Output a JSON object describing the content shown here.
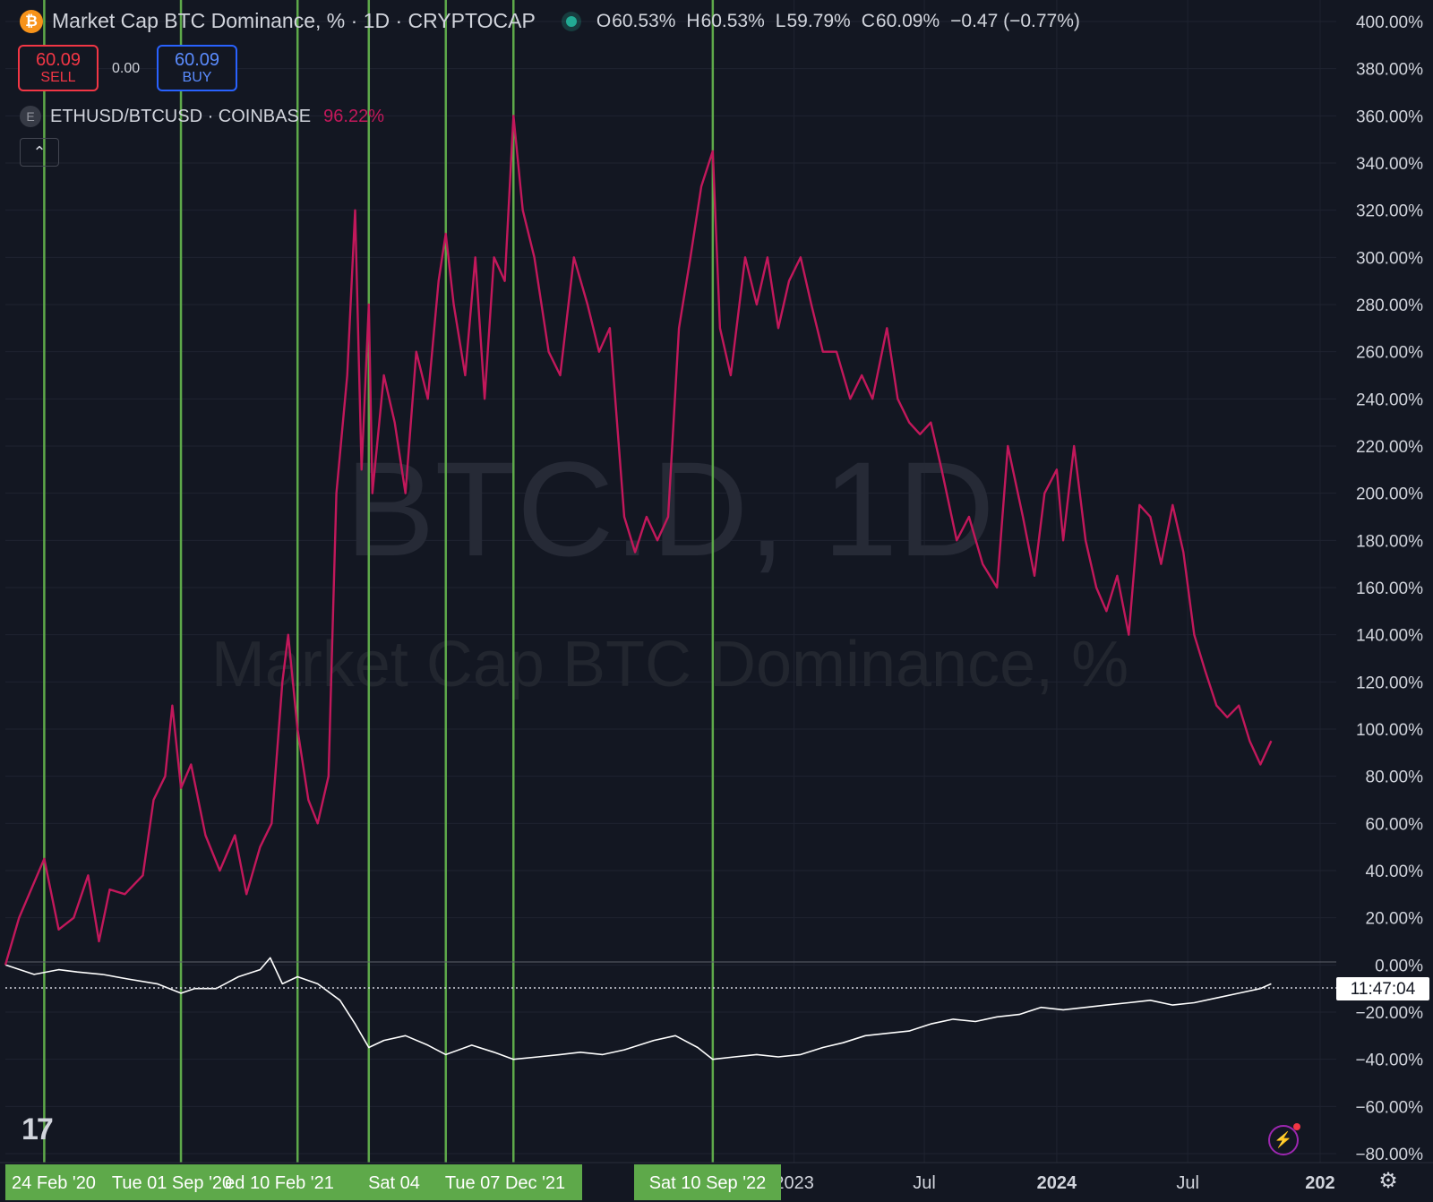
{
  "header": {
    "symbol_title": "Market Cap BTC Dominance, % · 1D · CRYPTOCAP",
    "btc_icon_glyph": "₿",
    "ohlc": [
      {
        "key": "O",
        "value": "60.53%"
      },
      {
        "key": "H",
        "value": "60.53%"
      },
      {
        "key": "L",
        "value": "59.79%"
      },
      {
        "key": "C",
        "value": "60.09%"
      }
    ],
    "change": "−0.47 (−0.77%)"
  },
  "trade": {
    "sell_price": "60.09",
    "sell_label": "SELL",
    "spread": "0.00",
    "buy_price": "60.09",
    "buy_label": "BUY"
  },
  "compare": {
    "icon_glyph": "E",
    "label": "ETHUSD/BTCUSD · COINBASE",
    "value": "96.22%"
  },
  "collapse_glyph": "⌃",
  "watermark": {
    "line1": "BTC.D, 1D",
    "line2": "Market Cap BTC Dominance, %"
  },
  "countdown": "11:47:04",
  "logo_text": "17",
  "colors": {
    "background": "#131722",
    "eth_series": "#c2185b",
    "btc_series": "#ffffff",
    "marker": "#5ea94a",
    "grid": "#1f2330"
  },
  "chart_data": {
    "type": "line",
    "xlim": [
      "2020-01-01",
      "2025-01-01"
    ],
    "ylim": [
      -80,
      400
    ],
    "y_ticks": [
      "400.00%",
      "380.00%",
      "360.00%",
      "340.00%",
      "320.00%",
      "300.00%",
      "280.00%",
      "260.00%",
      "240.00%",
      "220.00%",
      "200.00%",
      "180.00%",
      "160.00%",
      "140.00%",
      "120.00%",
      "100.00%",
      "80.00%",
      "60.00%",
      "40.00%",
      "20.00%",
      "0.00%",
      "−20.00%",
      "−40.00%",
      "−60.00%",
      "−80.00%"
    ],
    "x_ticks": [
      {
        "date": "2023-01-01",
        "label": "2023",
        "bold": false
      },
      {
        "date": "2023-07-01",
        "label": "Jul",
        "bold": false
      },
      {
        "date": "2024-01-01",
        "label": "2024",
        "bold": true
      },
      {
        "date": "2024-07-01",
        "label": "Jul",
        "bold": false
      },
      {
        "date": "2025-01-01",
        "label": "202",
        "bold": true
      }
    ],
    "marker_lines": [
      "2020-02-24",
      "2020-09-01",
      "2021-02-10",
      "2021-05-20",
      "2021-09-04",
      "2021-12-07",
      "2022-09-10"
    ],
    "marker_labels": [
      {
        "date": "2020-02-24",
        "text": "24 Feb '20"
      },
      {
        "date": "2020-09-01",
        "text": "Tue 01 Sep '20"
      },
      {
        "date": "2021-02-10",
        "text": "ed 10 Feb '21"
      },
      {
        "date": "2021-09-04",
        "text": "Sat 04"
      },
      {
        "date": "2021-12-07",
        "text": "Tue 07 Dec '21"
      },
      {
        "date": "2022-09-10",
        "text": "Sat 10 Sep '22"
      }
    ],
    "series": [
      {
        "name": "ETHUSD/BTCUSD",
        "x": [
          "2020-01-01",
          "2020-01-20",
          "2020-02-24",
          "2020-03-15",
          "2020-04-05",
          "2020-04-25",
          "2020-05-10",
          "2020-05-25",
          "2020-06-15",
          "2020-07-10",
          "2020-07-25",
          "2020-08-10",
          "2020-08-20",
          "2020-09-01",
          "2020-09-15",
          "2020-10-05",
          "2020-10-25",
          "2020-11-15",
          "2020-12-01",
          "2020-12-20",
          "2021-01-05",
          "2021-01-20",
          "2021-01-28",
          "2021-02-10",
          "2021-02-25",
          "2021-03-10",
          "2021-03-25",
          "2021-04-05",
          "2021-04-20",
          "2021-05-01",
          "2021-05-10",
          "2021-05-20",
          "2021-05-25",
          "2021-06-10",
          "2021-06-25",
          "2021-07-10",
          "2021-07-25",
          "2021-08-10",
          "2021-08-25",
          "2021-09-04",
          "2021-09-15",
          "2021-10-01",
          "2021-10-15",
          "2021-10-28",
          "2021-11-10",
          "2021-11-25",
          "2021-12-07",
          "2021-12-20",
          "2022-01-05",
          "2022-01-25",
          "2022-02-10",
          "2022-03-01",
          "2022-03-20",
          "2022-04-05",
          "2022-04-20",
          "2022-05-10",
          "2022-05-25",
          "2022-06-10",
          "2022-06-25",
          "2022-07-10",
          "2022-07-25",
          "2022-08-10",
          "2022-08-25",
          "2022-09-10",
          "2022-09-20",
          "2022-10-05",
          "2022-10-25",
          "2022-11-10",
          "2022-11-25",
          "2022-12-10",
          "2022-12-25",
          "2023-01-10",
          "2023-01-25",
          "2023-02-10",
          "2023-03-01",
          "2023-03-20",
          "2023-04-05",
          "2023-04-20",
          "2023-05-10",
          "2023-05-25",
          "2023-06-10",
          "2023-06-25",
          "2023-07-10",
          "2023-07-25",
          "2023-08-15",
          "2023-09-01",
          "2023-09-20",
          "2023-10-10",
          "2023-10-25",
          "2023-11-15",
          "2023-12-01",
          "2023-12-15",
          "2024-01-01",
          "2024-01-10",
          "2024-01-25",
          "2024-02-10",
          "2024-02-25",
          "2024-03-10",
          "2024-03-25",
          "2024-04-10",
          "2024-04-25",
          "2024-05-10",
          "2024-05-25",
          "2024-06-10",
          "2024-06-25",
          "2024-07-10",
          "2024-07-25",
          "2024-08-10",
          "2024-08-25",
          "2024-09-10",
          "2024-09-25",
          "2024-10-10",
          "2024-10-25"
        ],
        "y": [
          0,
          20,
          45,
          15,
          20,
          38,
          10,
          32,
          30,
          38,
          70,
          80,
          110,
          75,
          85,
          55,
          40,
          55,
          30,
          50,
          60,
          120,
          140,
          100,
          70,
          60,
          80,
          200,
          250,
          320,
          210,
          280,
          200,
          250,
          230,
          200,
          260,
          240,
          290,
          310,
          280,
          250,
          300,
          240,
          300,
          290,
          360,
          320,
          300,
          260,
          250,
          300,
          280,
          260,
          270,
          190,
          175,
          190,
          180,
          190,
          270,
          300,
          330,
          345,
          270,
          250,
          300,
          280,
          300,
          270,
          290,
          300,
          280,
          260,
          260,
          240,
          250,
          240,
          270,
          240,
          230,
          225,
          230,
          210,
          180,
          190,
          170,
          160,
          220,
          190,
          165,
          200,
          210,
          180,
          220,
          180,
          160,
          150,
          165,
          140,
          195,
          190,
          170,
          195,
          175,
          140,
          125,
          110,
          105,
          110,
          95,
          85,
          95
        ],
        "stroke": "#c2185b"
      },
      {
        "name": "BTC.D",
        "x": [
          "2020-01-01",
          "2020-02-10",
          "2020-03-15",
          "2020-04-10",
          "2020-05-15",
          "2020-06-20",
          "2020-07-30",
          "2020-09-01",
          "2020-09-20",
          "2020-10-20",
          "2020-11-20",
          "2020-12-20",
          "2021-01-03",
          "2021-01-20",
          "2021-02-10",
          "2021-03-10",
          "2021-04-10",
          "2021-05-01",
          "2021-05-20",
          "2021-06-10",
          "2021-07-10",
          "2021-08-10",
          "2021-09-04",
          "2021-10-10",
          "2021-11-10",
          "2021-12-07",
          "2022-01-10",
          "2022-02-10",
          "2022-03-10",
          "2022-04-10",
          "2022-05-10",
          "2022-06-20",
          "2022-07-20",
          "2022-08-20",
          "2022-09-10",
          "2022-10-10",
          "2022-11-10",
          "2022-12-10",
          "2023-01-10",
          "2023-02-10",
          "2023-03-10",
          "2023-04-10",
          "2023-05-10",
          "2023-06-10",
          "2023-07-10",
          "2023-08-10",
          "2023-09-10",
          "2023-10-10",
          "2023-11-10",
          "2023-12-10",
          "2024-01-10",
          "2024-02-10",
          "2024-03-10",
          "2024-04-10",
          "2024-05-10",
          "2024-06-10",
          "2024-07-10",
          "2024-08-10",
          "2024-09-10",
          "2024-10-10",
          "2024-10-25"
        ],
        "y": [
          0,
          -4,
          -2,
          -3,
          -4,
          -6,
          -8,
          -12,
          -10,
          -10,
          -5,
          -2,
          3,
          -8,
          -5,
          -8,
          -15,
          -25,
          -35,
          -32,
          -30,
          -34,
          -38,
          -34,
          -37,
          -40,
          -39,
          -38,
          -37,
          -38,
          -36,
          -32,
          -30,
          -35,
          -40,
          -39,
          -38,
          -39,
          -38,
          -35,
          -33,
          -30,
          -29,
          -28,
          -25,
          -23,
          -24,
          -22,
          -21,
          -18,
          -19,
          -18,
          -17,
          -16,
          -15,
          -17,
          -16,
          -14,
          -12,
          -10,
          -8
        ],
        "stroke": "#ffffff"
      }
    ]
  }
}
